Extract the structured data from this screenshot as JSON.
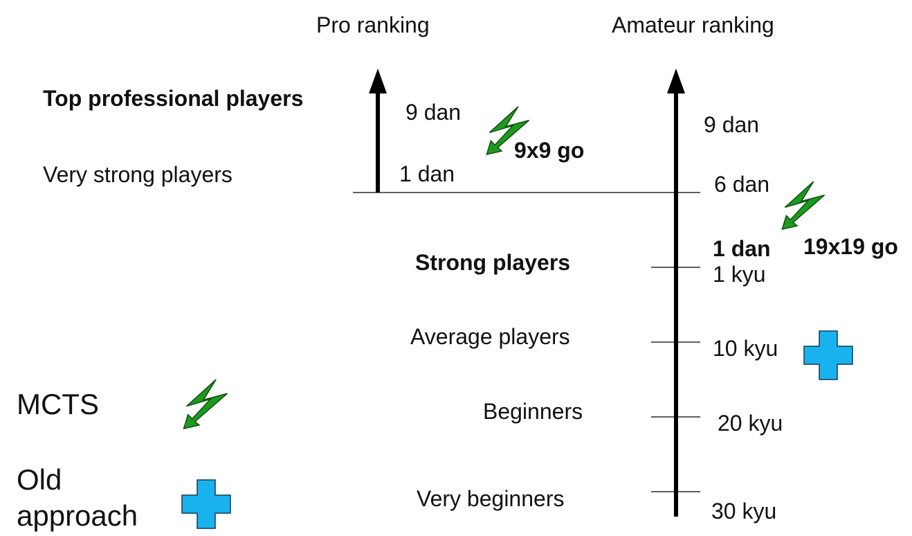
{
  "headers": {
    "pro": "Pro ranking",
    "amateur": "Amateur ranking"
  },
  "categories": {
    "top_pro": "Top professional players",
    "very_strong": "Very strong players",
    "strong": "Strong players",
    "average": "Average players",
    "beginners": "Beginners",
    "very_beginners": "Very beginners"
  },
  "pro_ranks": {
    "top": "9 dan",
    "bottom": "1 dan"
  },
  "amateur_ranks": {
    "r9dan": "9 dan",
    "r6dan": "6 dan",
    "r1dan": "1 dan",
    "r1kyu": "1 kyu",
    "r10kyu": "10 kyu",
    "r20kyu": "20 kyu",
    "r30kyu": "30 kyu"
  },
  "board_sizes": {
    "nine": "9x9 go",
    "nineteen": "19x19 go"
  },
  "legend": {
    "mcts": "MCTS",
    "old_line1": "Old",
    "old_line2": "approach"
  },
  "icons": {
    "lightning": "lightning-icon",
    "cross": "cross-icon"
  },
  "colors": {
    "lightning_fill": "#1e9a1e",
    "lightning_stroke": "#0d4f0d",
    "cross_fill": "#1ab2ee",
    "cross_stroke": "#0e3c57",
    "axis": "#000000"
  }
}
